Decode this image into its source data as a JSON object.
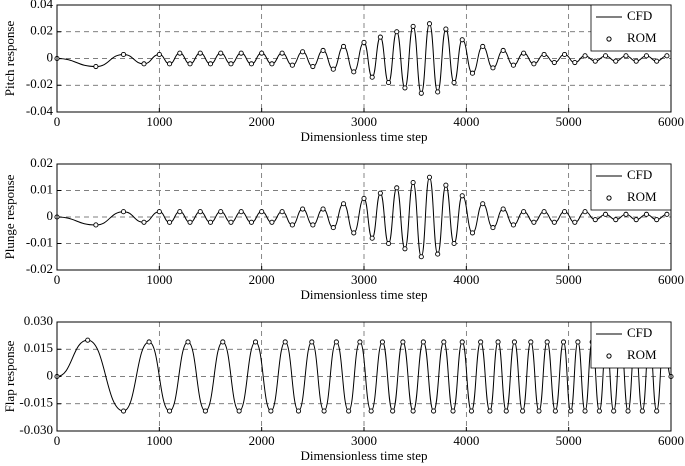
{
  "chart_data": [
    {
      "type": "line",
      "xlabel": "Dimensionless time step",
      "ylabel": "Pitch response",
      "xlim": [
        0,
        6000
      ],
      "ylim": [
        -0.04,
        0.04
      ],
      "xticks": [
        0,
        1000,
        2000,
        3000,
        4000,
        5000,
        6000
      ],
      "yticks": [
        -0.04,
        -0.02,
        0,
        0.02,
        0.04
      ],
      "grid": true,
      "legend": "upper right",
      "x": [
        0,
        380,
        650,
        850,
        1000,
        1100,
        1200,
        1300,
        1400,
        1500,
        1600,
        1700,
        1800,
        1900,
        2000,
        2100,
        2200,
        2300,
        2400,
        2500,
        2600,
        2700,
        2800,
        2900,
        3000,
        3080,
        3160,
        3240,
        3320,
        3400,
        3480,
        3560,
        3640,
        3720,
        3800,
        3880,
        3960,
        4060,
        4160,
        4260,
        4360,
        4460,
        4560,
        4660,
        4760,
        4860,
        4960,
        5060,
        5160,
        5260,
        5360,
        5460,
        5560,
        5660,
        5760,
        5860,
        5960
      ],
      "series": [
        {
          "name": "CFD",
          "color": "#000000",
          "marker": "none",
          "values": [
            0,
            -0.006,
            0.003,
            -0.004,
            0.003,
            -0.004,
            0.004,
            -0.004,
            0.004,
            -0.004,
            0.004,
            -0.004,
            0.004,
            -0.004,
            0.004,
            -0.004,
            0.004,
            -0.005,
            0.005,
            -0.006,
            0.006,
            -0.008,
            0.009,
            -0.01,
            0.012,
            -0.014,
            0.016,
            -0.018,
            0.02,
            -0.022,
            0.024,
            -0.026,
            0.026,
            -0.025,
            0.022,
            -0.018,
            0.014,
            -0.011,
            0.009,
            -0.007,
            0.006,
            -0.005,
            0.004,
            -0.004,
            0.003,
            -0.003,
            0.003,
            -0.003,
            0.002,
            -0.002,
            0.002,
            -0.002,
            0.002,
            -0.002,
            0.002,
            -0.002,
            0.002
          ]
        },
        {
          "name": "ROM",
          "color": "#000000",
          "marker": "circle",
          "values": [
            0,
            -0.006,
            0.003,
            -0.004,
            0.003,
            -0.004,
            0.004,
            -0.004,
            0.004,
            -0.004,
            0.004,
            -0.004,
            0.004,
            -0.004,
            0.004,
            -0.004,
            0.004,
            -0.005,
            0.005,
            -0.006,
            0.006,
            -0.008,
            0.009,
            -0.01,
            0.012,
            -0.014,
            0.016,
            -0.018,
            0.02,
            -0.022,
            0.024,
            -0.026,
            0.026,
            -0.025,
            0.022,
            -0.018,
            0.014,
            -0.011,
            0.009,
            -0.007,
            0.006,
            -0.005,
            0.004,
            -0.004,
            0.003,
            -0.003,
            0.003,
            -0.003,
            0.002,
            -0.002,
            0.002,
            -0.002,
            0.002,
            -0.002,
            0.002,
            -0.002,
            0.002
          ]
        }
      ]
    },
    {
      "type": "line",
      "xlabel": "Dimensionless time step",
      "ylabel": "Plunge response",
      "xlim": [
        0,
        6000
      ],
      "ylim": [
        -0.02,
        0.02
      ],
      "xticks": [
        0,
        1000,
        2000,
        3000,
        4000,
        5000,
        6000
      ],
      "yticks": [
        -0.02,
        -0.01,
        0,
        0.01,
        0.02
      ],
      "grid": true,
      "legend": "upper right",
      "x": [
        0,
        380,
        650,
        850,
        1000,
        1100,
        1200,
        1300,
        1400,
        1500,
        1600,
        1700,
        1800,
        1900,
        2000,
        2100,
        2200,
        2300,
        2400,
        2500,
        2600,
        2700,
        2800,
        2900,
        3000,
        3080,
        3160,
        3240,
        3320,
        3400,
        3480,
        3560,
        3640,
        3720,
        3800,
        3880,
        3960,
        4060,
        4160,
        4260,
        4360,
        4460,
        4560,
        4660,
        4760,
        4860,
        4960,
        5060,
        5160,
        5260,
        5360,
        5460,
        5560,
        5660,
        5760,
        5860,
        5960
      ],
      "series": [
        {
          "name": "CFD",
          "color": "#000000",
          "marker": "none",
          "values": [
            0,
            -0.003,
            0.002,
            -0.002,
            0.002,
            -0.002,
            0.002,
            -0.002,
            0.002,
            -0.002,
            0.002,
            -0.002,
            0.002,
            -0.002,
            0.002,
            -0.002,
            0.002,
            -0.003,
            0.003,
            -0.003,
            0.003,
            -0.004,
            0.005,
            -0.006,
            0.007,
            -0.008,
            0.009,
            -0.01,
            0.011,
            -0.012,
            0.013,
            -0.015,
            0.015,
            -0.014,
            0.012,
            -0.01,
            0.008,
            -0.006,
            0.005,
            -0.004,
            0.003,
            -0.003,
            0.002,
            -0.002,
            0.002,
            -0.002,
            0.002,
            -0.002,
            0.002,
            -0.001,
            0.001,
            -0.001,
            0.001,
            -0.001,
            0.001,
            -0.001,
            0.001
          ]
        },
        {
          "name": "ROM",
          "color": "#000000",
          "marker": "circle",
          "values": [
            0,
            -0.003,
            0.002,
            -0.002,
            0.002,
            -0.002,
            0.002,
            -0.002,
            0.002,
            -0.002,
            0.002,
            -0.002,
            0.002,
            -0.002,
            0.002,
            -0.002,
            0.002,
            -0.003,
            0.003,
            -0.003,
            0.003,
            -0.004,
            0.005,
            -0.006,
            0.007,
            -0.008,
            0.009,
            -0.01,
            0.011,
            -0.012,
            0.013,
            -0.015,
            0.015,
            -0.014,
            0.012,
            -0.01,
            0.008,
            -0.006,
            0.005,
            -0.004,
            0.003,
            -0.003,
            0.002,
            -0.002,
            0.002,
            -0.002,
            0.002,
            -0.002,
            0.002,
            -0.001,
            0.001,
            -0.001,
            0.001,
            -0.001,
            0.001,
            -0.001,
            0.001
          ]
        }
      ]
    },
    {
      "type": "line",
      "xlabel": "Dimensionless time step",
      "ylabel": "Flap response",
      "xlim": [
        0,
        6000
      ],
      "ylim": [
        -0.03,
        0.03
      ],
      "xticks": [
        0,
        1000,
        2000,
        3000,
        4000,
        5000,
        6000
      ],
      "yticks": [
        {
          "value": -0.03,
          "label": "-0.030"
        },
        -0.015,
        0,
        0.015,
        {
          "value": 0.03,
          "label": "0.030"
        }
      ],
      "grid": true,
      "legend": "upper right",
      "x": [
        0,
        300,
        650,
        900,
        1100,
        1280,
        1450,
        1620,
        1780,
        1940,
        2090,
        2230,
        2360,
        2490,
        2610,
        2730,
        2850,
        2960,
        3070,
        3180,
        3280,
        3380,
        3480,
        3580,
        3680,
        3780,
        3870,
        3960,
        4050,
        4140,
        4230,
        4310,
        4390,
        4470,
        4550,
        4630,
        4710,
        4790,
        4870,
        4950,
        5020,
        5090,
        5160,
        5230,
        5300,
        5370,
        5440,
        5510,
        5580,
        5650,
        5720,
        5790,
        5860,
        5930,
        6000
      ],
      "series": [
        {
          "name": "CFD",
          "color": "#000000",
          "marker": "none",
          "values": [
            0,
            0.02,
            -0.019,
            0.019,
            -0.019,
            0.019,
            -0.019,
            0.019,
            -0.019,
            0.019,
            -0.019,
            0.019,
            -0.019,
            0.019,
            -0.019,
            0.019,
            -0.019,
            0.019,
            -0.019,
            0.019,
            -0.019,
            0.019,
            -0.019,
            0.019,
            -0.019,
            0.019,
            -0.019,
            0.019,
            -0.019,
            0.019,
            -0.019,
            0.019,
            -0.019,
            0.019,
            -0.019,
            0.019,
            -0.019,
            0.019,
            -0.019,
            0.019,
            -0.019,
            0.019,
            -0.019,
            0.019,
            -0.019,
            0.019,
            -0.019,
            0.019,
            -0.019,
            0.019,
            -0.019,
            0.019,
            -0.019,
            0.019,
            0
          ]
        },
        {
          "name": "ROM",
          "color": "#000000",
          "marker": "circle",
          "values": [
            0,
            0.02,
            -0.019,
            0.019,
            -0.019,
            0.019,
            -0.019,
            0.019,
            -0.019,
            0.019,
            -0.019,
            0.019,
            -0.019,
            0.019,
            -0.019,
            0.019,
            -0.019,
            0.019,
            -0.019,
            0.019,
            -0.019,
            0.019,
            -0.019,
            0.019,
            -0.019,
            0.019,
            -0.019,
            0.019,
            -0.019,
            0.019,
            -0.019,
            0.019,
            -0.019,
            0.019,
            -0.019,
            0.019,
            -0.019,
            0.019,
            -0.019,
            0.019,
            -0.019,
            0.019,
            -0.019,
            0.019,
            -0.019,
            0.019,
            -0.019,
            0.019,
            -0.019,
            0.019,
            -0.019,
            0.019,
            -0.019,
            0.019,
            0
          ]
        }
      ]
    }
  ]
}
